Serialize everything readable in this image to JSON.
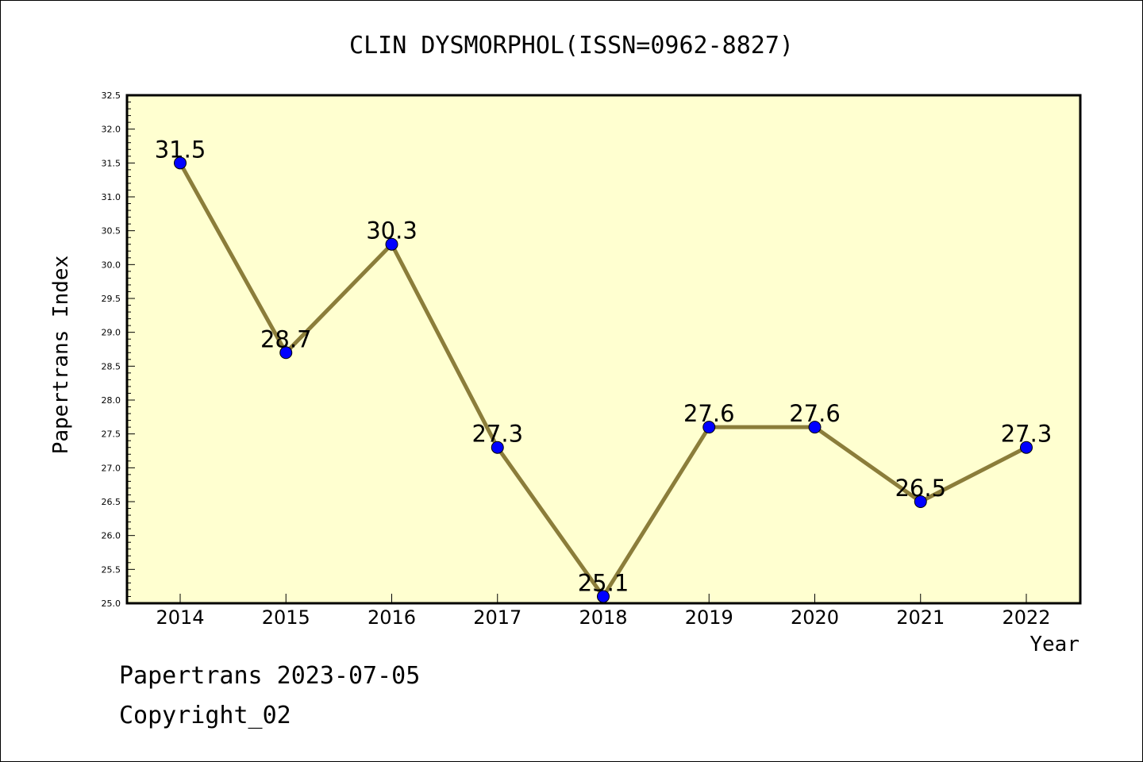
{
  "chart_data": {
    "type": "line",
    "title": "CLIN DYSMORPHOL(ISSN=0962-8827)",
    "xlabel": "Year",
    "ylabel": "Papertrans Index",
    "categories": [
      "2014",
      "2015",
      "2016",
      "2017",
      "2018",
      "2019",
      "2020",
      "2021",
      "2022"
    ],
    "values": [
      31.5,
      28.7,
      30.3,
      27.3,
      25.1,
      27.6,
      27.6,
      26.5,
      27.3
    ],
    "data_labels": [
      "31.5",
      "28.7",
      "30.3",
      "27.3",
      "25.1",
      "27.6",
      "27.6",
      "26.5",
      "27.3"
    ],
    "ylim": [
      25.0,
      32.5
    ],
    "yticks": [
      "25.0",
      "25.5",
      "26.0",
      "26.5",
      "27.0",
      "27.5",
      "28.0",
      "28.5",
      "29.0",
      "29.5",
      "30.0",
      "30.5",
      "31.0",
      "31.5",
      "32.0",
      "32.5"
    ],
    "grid": false,
    "colors": {
      "plot_background": "#ffffd0",
      "line": "#8b7d3a",
      "marker": "#0000ff"
    }
  },
  "footer": {
    "line1": "Papertrans 2023-07-05",
    "line2": "Copyright_02"
  }
}
